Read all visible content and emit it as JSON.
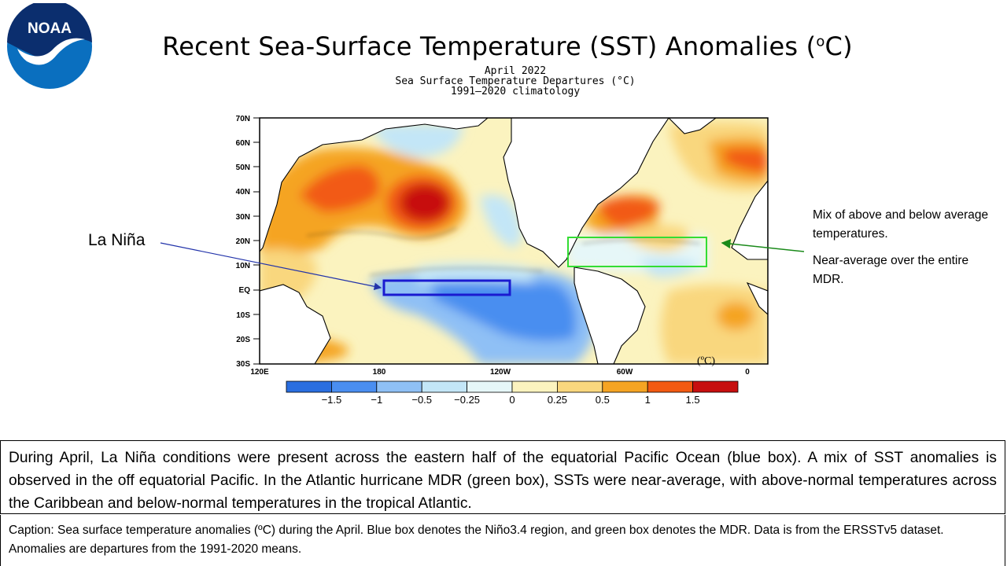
{
  "logo": {
    "text": "NOAA"
  },
  "title": {
    "text": "Recent Sea-Surface Temperature (SST) Anomalies (",
    "sup": "o",
    "suffix": "C)"
  },
  "map": {
    "header_line1": "April 2022",
    "header_line2": "Sea Surface Temperature Departures (°C)",
    "header_line3": "1991–2020 climatology",
    "lat_labels": [
      "70N",
      "60N",
      "50N",
      "40N",
      "30N",
      "20N",
      "10N",
      "EQ",
      "10S",
      "20S",
      "30S"
    ],
    "lon_labels": [
      "120E",
      "180",
      "120W",
      "60W",
      "0"
    ],
    "units_label": "(ºC)",
    "colorbar": {
      "colors": [
        "#2a6ee0",
        "#4a8ef0",
        "#8fc0f5",
        "#c3e6f7",
        "#e6f7f8",
        "#fbf3bf",
        "#f9d77e",
        "#f5a423",
        "#f25a12",
        "#c70f0f"
      ],
      "tick_labels": [
        "−1.5",
        "−1",
        "−0.5",
        "−0.25",
        "0",
        "0.25",
        "0.5",
        "1",
        "1.5"
      ]
    },
    "regions": [
      {
        "name": "Niño3.4",
        "color": "#1a1ad1"
      },
      {
        "name": "MDR",
        "color": "#33dd33"
      }
    ]
  },
  "annotations": {
    "la_nina": "La Niña",
    "mdr_line1": "Mix of above and below average temperatures.",
    "mdr_line2": "Near-average over the entire MDR."
  },
  "summary": "During April, La Niña conditions were present across the eastern half of the equatorial Pacific Ocean (blue box). A mix of SST anomalies is observed in the off equatorial Pacific. In the Atlantic hurricane MDR (green box), SSTs were near-average, with above-normal temperatures across the Caribbean and below-normal temperatures in the tropical Atlantic.",
  "caption": "Caption: Sea surface temperature anomalies (ºC) during the April. Blue box denotes the Niño3.4 region, and green box denotes the MDR. Data is from the ERSSTv5 dataset. Anomalies are departures from the 1991-2020 means."
}
